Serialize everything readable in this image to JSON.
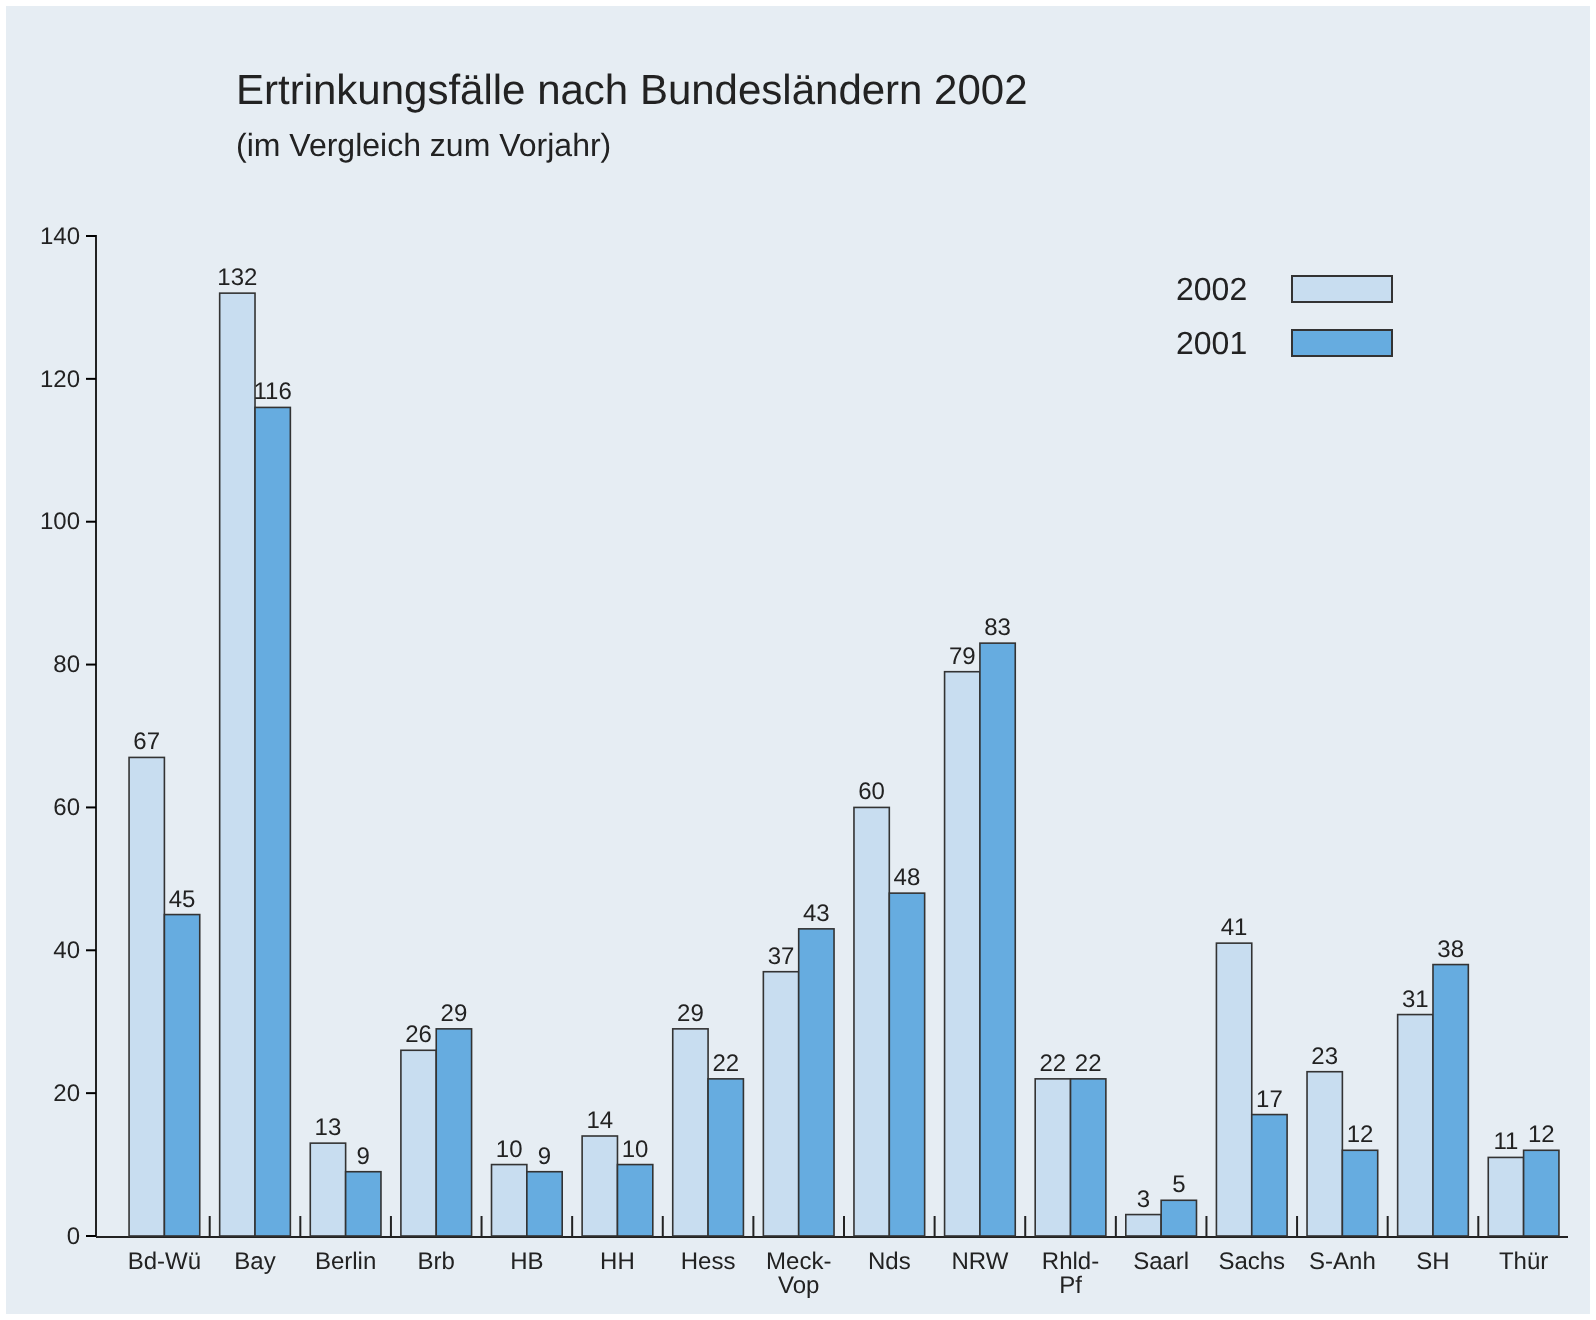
{
  "chart_data": {
    "type": "bar",
    "title": "Ertrinkungsfälle nach Bundesländern 2002",
    "subtitle": "(im Vergleich zum Vorjahr)",
    "categories": [
      "Bd-Wü",
      "Bay",
      "Berlin",
      "Brb",
      "HB",
      "HH",
      "Hess",
      "Meck-Vop",
      "Nds",
      "NRW",
      "Rhld-Pf",
      "Saarl",
      "Sachs",
      "S-Anh",
      "SH",
      "Thür"
    ],
    "series": [
      {
        "name": "2002",
        "color": "#c8ddf0",
        "values": [
          67,
          132,
          13,
          26,
          10,
          14,
          29,
          37,
          60,
          79,
          22,
          3,
          41,
          23,
          31,
          11
        ]
      },
      {
        "name": "2001",
        "color": "#66ace0",
        "values": [
          45,
          116,
          9,
          29,
          9,
          10,
          22,
          43,
          48,
          83,
          22,
          5,
          17,
          12,
          38,
          12
        ]
      }
    ],
    "ylim": [
      0,
      140
    ],
    "yticks": [
      0,
      20,
      40,
      60,
      80,
      100,
      120,
      140
    ],
    "data_labels": true,
    "legend": "top right",
    "grid": false
  }
}
